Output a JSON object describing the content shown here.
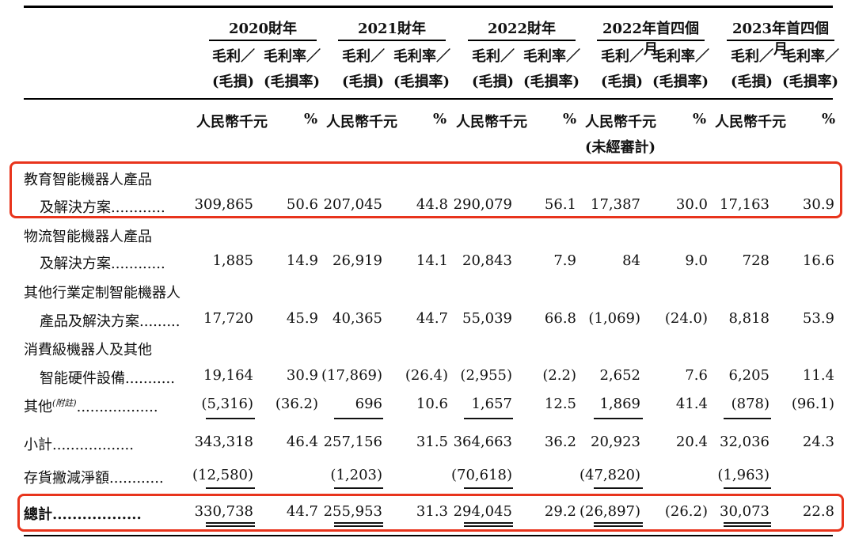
{
  "header": {
    "groups": [
      "2020財年",
      "2021財年",
      "2022財年",
      "2022年首四個月",
      "2023年首四個月"
    ],
    "col_a_line1": "毛利／",
    "col_a_line2": "(毛損)",
    "col_b_line1": "毛利率／",
    "col_b_line2": "(毛損率)",
    "unit_currency": "人民幣千元",
    "unit_pct": "%",
    "unaudited": "(未經審計)"
  },
  "rows": [
    {
      "label1": "教育智能機器人產品",
      "label2": "及解決方案............",
      "values": [
        "309,865",
        "50.6",
        "207,045",
        "44.8",
        "290,079",
        "56.1",
        "17,387",
        "30.0",
        "17,163",
        "30.9"
      ]
    },
    {
      "label1": "物流智能機器人產品",
      "label2": "及解決方案............",
      "values": [
        "1,885",
        "14.9",
        "26,919",
        "14.1",
        "20,843",
        "7.9",
        "84",
        "9.0",
        "728",
        "16.6"
      ]
    },
    {
      "label1": "其他行業定制智能機器人",
      "label2": "產品及解決方案.........",
      "values": [
        "17,720",
        "45.9",
        "40,365",
        "44.7",
        "55,039",
        "66.8",
        "(1,069)",
        "(24.0)",
        "8,818",
        "53.9"
      ]
    },
    {
      "label1": "消費級機器人及其他",
      "label2": "智能硬件設備...........",
      "values": [
        "19,164",
        "30.9",
        "(17,869)",
        "(26.4)",
        "(2,955)",
        "(2.2)",
        "2,652",
        "7.6",
        "6,205",
        "11.4"
      ]
    },
    {
      "label1": "其他",
      "note": "(附註)",
      "label2": "..................",
      "values": [
        "(5,316)",
        "(36.2)",
        "696",
        "10.6",
        "1,657",
        "12.5",
        "1,869",
        "41.4",
        "(878)",
        "(96.1)"
      ]
    },
    {
      "label1": "小計..................",
      "values": [
        "343,318",
        "46.4",
        "257,156",
        "31.5",
        "364,663",
        "36.2",
        "20,923",
        "20.4",
        "32,036",
        "24.3"
      ]
    },
    {
      "label1": "存貨撇減淨額............",
      "values": [
        "(12,580)",
        "",
        "(1,203)",
        "",
        "(70,618)",
        "",
        "(47,820)",
        "",
        "(1,963)",
        ""
      ]
    },
    {
      "label1": "總計..................",
      "values": [
        "330,738",
        "44.7",
        "255,953",
        "31.3",
        "294,045",
        "29.2",
        "(26,897)",
        "(26.2)",
        "30,073",
        "22.8"
      ]
    }
  ],
  "highlight_color": "#e8341c"
}
